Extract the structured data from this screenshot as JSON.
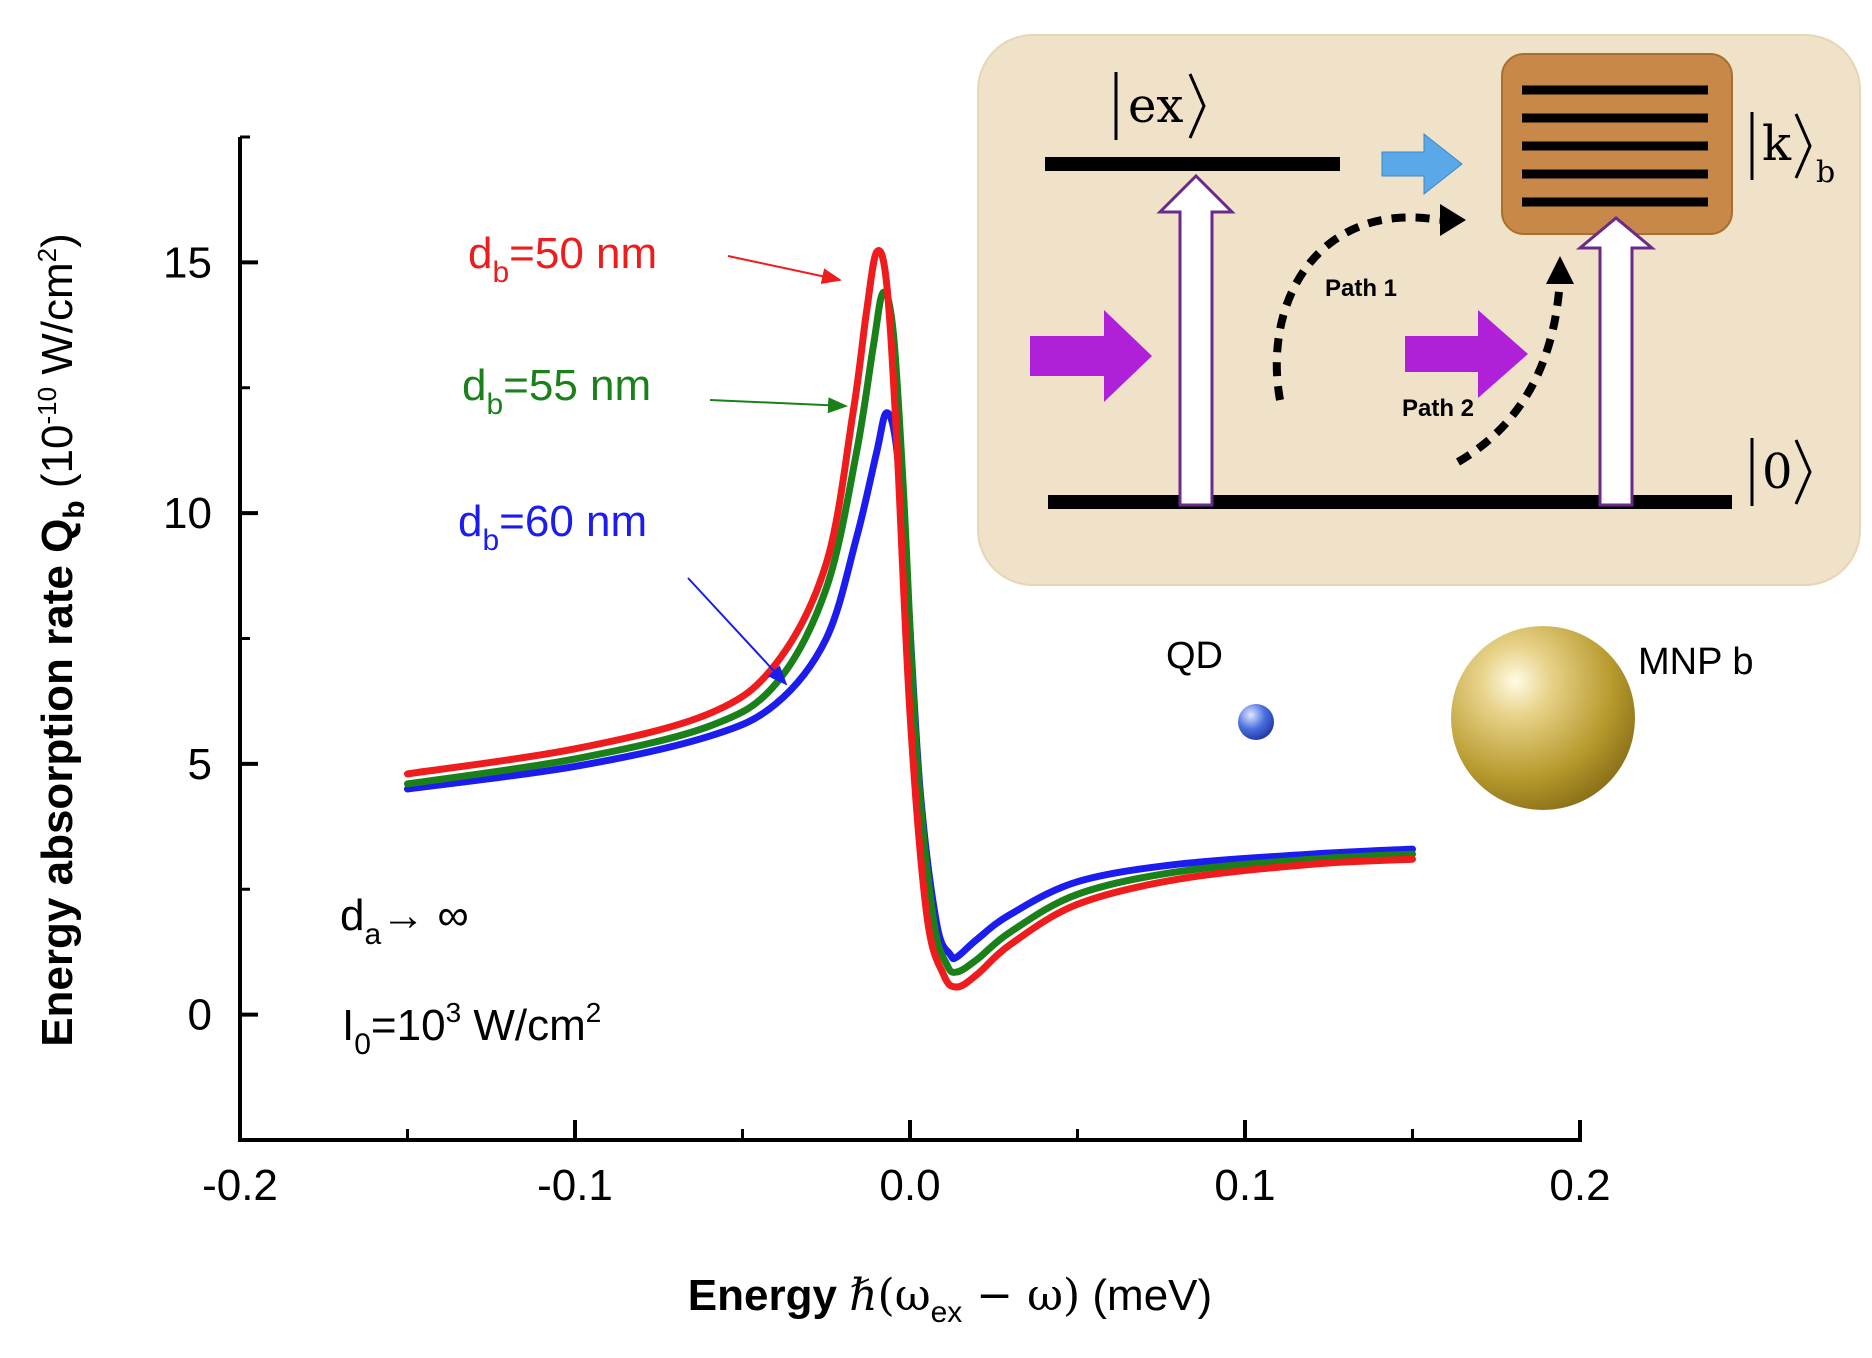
{
  "chart_data": {
    "type": "line",
    "x_axis": {
      "label_bold": "Energy",
      "label_hbar": "ℏ",
      "label_open": "(ω",
      "label_sub": "ex",
      "label_close": " − ω)",
      "label_units": "(meV)",
      "range": [
        -0.2,
        0.2
      ],
      "ticks": [
        -0.2,
        -0.1,
        0.0,
        0.1,
        0.2
      ],
      "tick_labels": [
        "-0.2",
        "-0.1",
        "0.0",
        "0.1",
        "0.2"
      ]
    },
    "y_axis": {
      "label_main": "Energy absorption rate Q",
      "label_sub": "b",
      "label_unit_open": " (10",
      "label_unit_exp": "-10",
      "label_unit_mid": " W/cm",
      "label_unit_exp2": "2",
      "label_unit_close": ")",
      "range": [
        -2.5,
        17.5
      ],
      "ticks": [
        0,
        5,
        10,
        15
      ],
      "tick_labels": [
        "0",
        "5",
        "10",
        "15"
      ]
    },
    "series": [
      {
        "name": "db=50 nm",
        "label_main": "d",
        "label_sub": "b",
        "label_rest": "=50 nm",
        "color": "#ee1c1c",
        "x": [
          -0.15,
          -0.1,
          -0.06,
          -0.04,
          -0.025,
          -0.017,
          -0.013,
          -0.01,
          -0.007,
          -0.004,
          0.0,
          0.005,
          0.01,
          0.014,
          0.02,
          0.03,
          0.05,
          0.08,
          0.12,
          0.15
        ],
        "y": [
          4.8,
          5.3,
          6.0,
          7.0,
          9.0,
          12.0,
          14.0,
          15.2,
          14.6,
          11.5,
          6.0,
          2.0,
          0.8,
          0.55,
          0.8,
          1.4,
          2.2,
          2.7,
          3.0,
          3.1
        ]
      },
      {
        "name": "db=55 nm",
        "label_main": "d",
        "label_sub": "b",
        "label_rest": "=55 nm",
        "color": "#1a801a",
        "x": [
          -0.15,
          -0.1,
          -0.06,
          -0.04,
          -0.025,
          -0.016,
          -0.011,
          -0.008,
          -0.005,
          -0.002,
          0.002,
          0.007,
          0.011,
          0.014,
          0.02,
          0.03,
          0.05,
          0.08,
          0.12,
          0.15
        ],
        "y": [
          4.6,
          5.1,
          5.75,
          6.6,
          8.5,
          11.2,
          13.3,
          14.4,
          13.6,
          10.5,
          5.2,
          1.9,
          1.0,
          0.85,
          1.1,
          1.65,
          2.4,
          2.85,
          3.1,
          3.2
        ]
      },
      {
        "name": "db=60 nm",
        "label_main": "d",
        "label_sub": "b",
        "label_rest": "=60 nm",
        "color": "#1c1cee",
        "x": [
          -0.15,
          -0.1,
          -0.06,
          -0.04,
          -0.025,
          -0.016,
          -0.01,
          -0.007,
          -0.004,
          -0.001,
          0.003,
          0.008,
          0.012,
          0.014,
          0.02,
          0.03,
          0.05,
          0.08,
          0.12,
          0.15
        ],
        "y": [
          4.5,
          4.95,
          5.55,
          6.2,
          7.5,
          9.5,
          11.2,
          12.0,
          11.3,
          8.8,
          4.5,
          1.8,
          1.2,
          1.15,
          1.5,
          2.0,
          2.65,
          3.0,
          3.2,
          3.3
        ]
      }
    ],
    "annotations": {
      "da_main": "d",
      "da_sub": "a",
      "da_rest": "→ ∞",
      "i0_main": "I",
      "i0_sub": "0",
      "i0_mid": "=10",
      "i0_exp": "3",
      "i0_unit": " W/cm",
      "i0_exp2": "2"
    }
  },
  "inset": {
    "level_ex": "ex",
    "level_k": "k",
    "level_k_sub": "b",
    "level_0": "0",
    "path1": "Path 1",
    "path2": "Path 2",
    "qd_label": "QD",
    "mnp_label": "MNP b",
    "bg_color": "#f0e2c8",
    "box_color": "#c8884a",
    "pump_color": "#b020d8",
    "transfer_color": "#5aa8e8"
  }
}
